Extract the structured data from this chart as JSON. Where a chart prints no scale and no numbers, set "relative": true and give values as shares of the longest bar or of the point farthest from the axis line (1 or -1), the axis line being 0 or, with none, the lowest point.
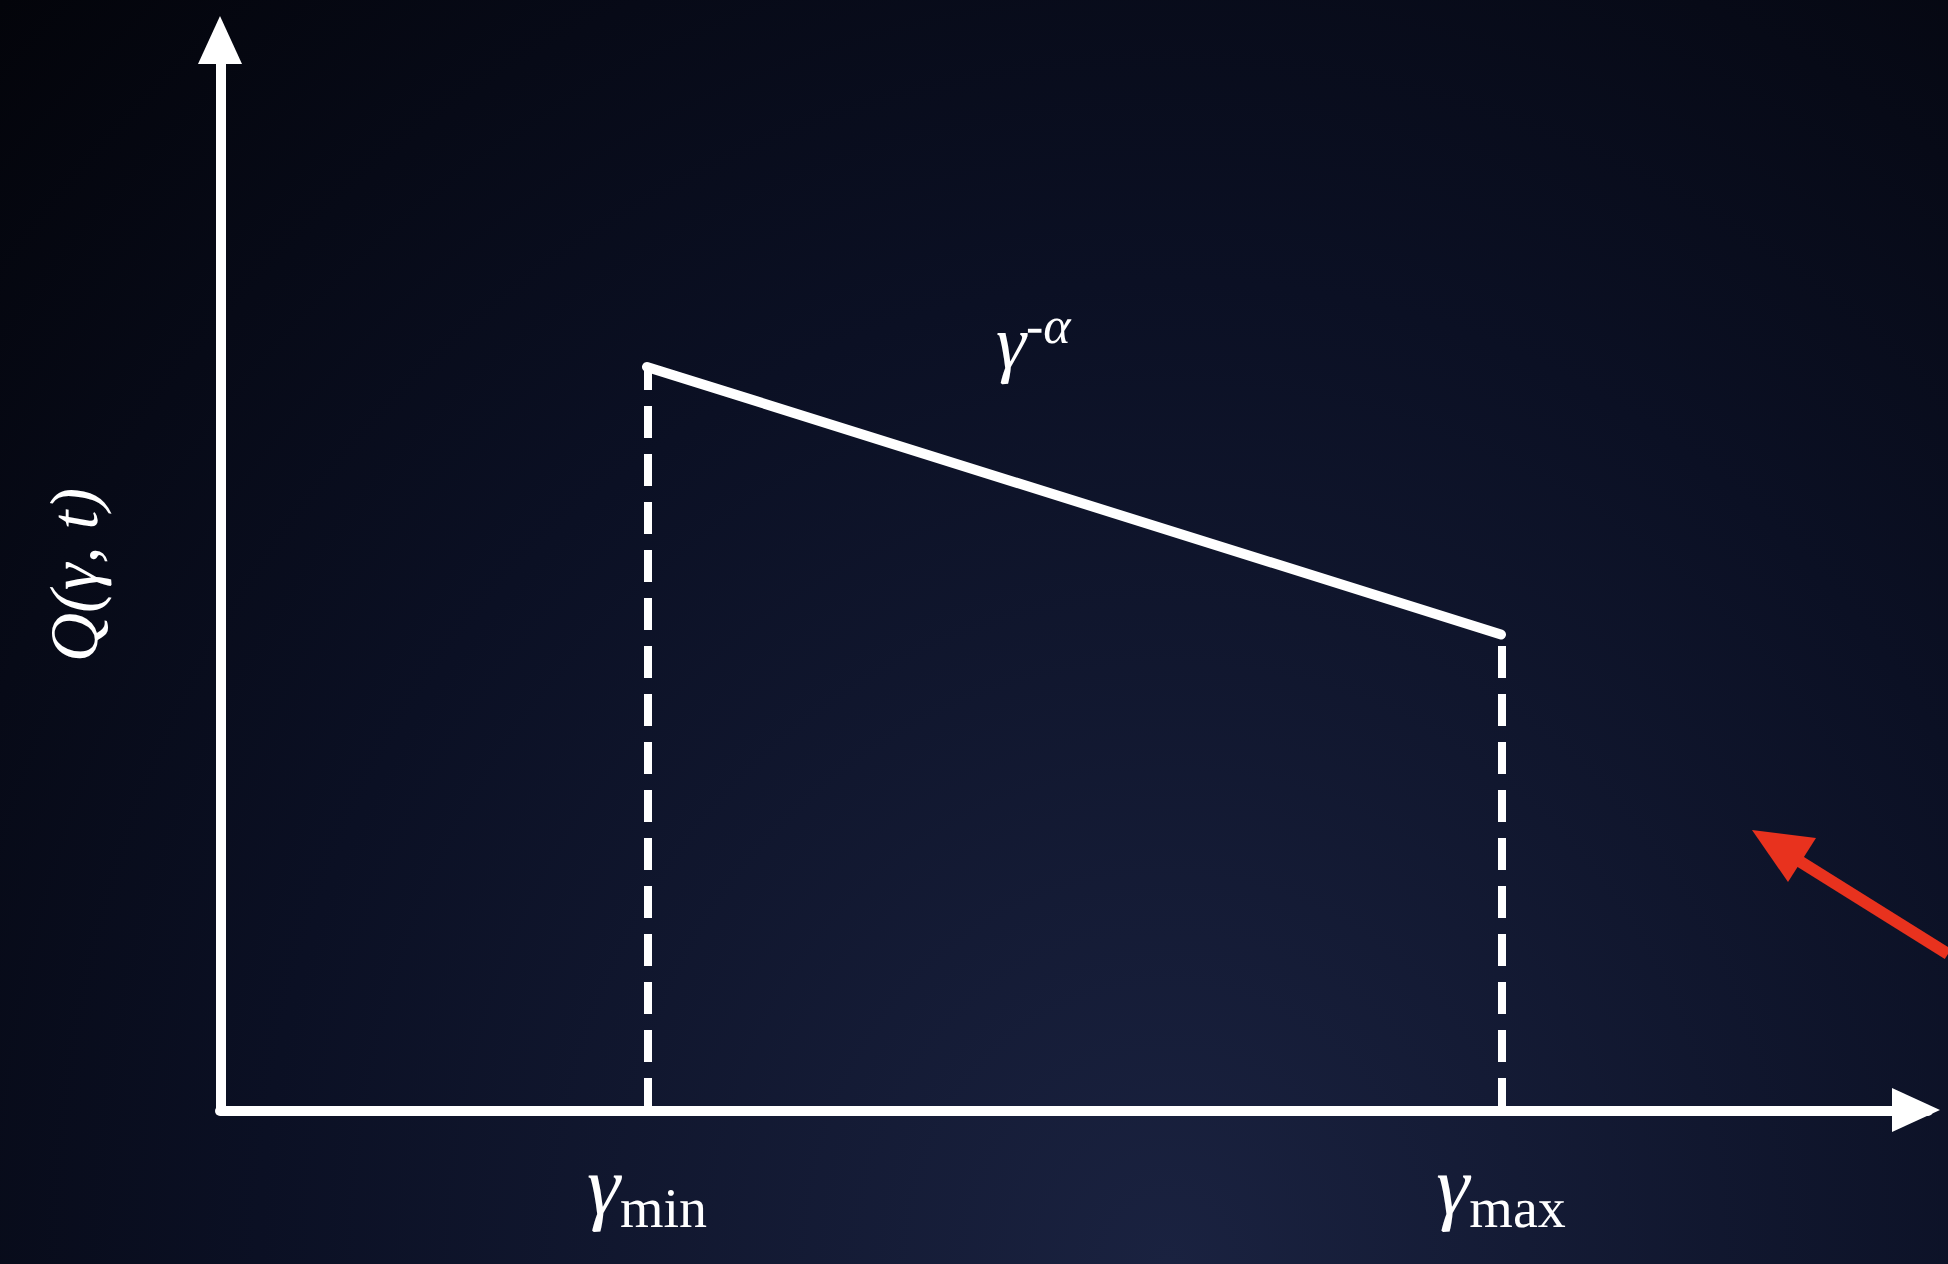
{
  "chart_data": {
    "type": "line",
    "relative": true,
    "ylabel": "Q(γ, t)",
    "categories": [
      null,
      "γ$_{min}$",
      null,
      "γ$_{max}$",
      null
    ],
    "series": [
      {
        "color": "#ffffff",
        "values": [
          null,
          1,
          null,
          0.64,
          null
        ]
      }
    ],
    "ref_lines": [
      {
        "axis": "x",
        "value": "γ$_{min}$",
        "line_style": "dashed",
        "color": "#ffffff"
      },
      {
        "axis": "x",
        "value": "γ$_{max}$",
        "line_style": "dashed",
        "color": "#ffffff"
      }
    ],
    "annotations": [
      "γ$^{-α}$"
    ],
    "marker": "none",
    "line_style": "solid",
    "grid": false
  }
}
